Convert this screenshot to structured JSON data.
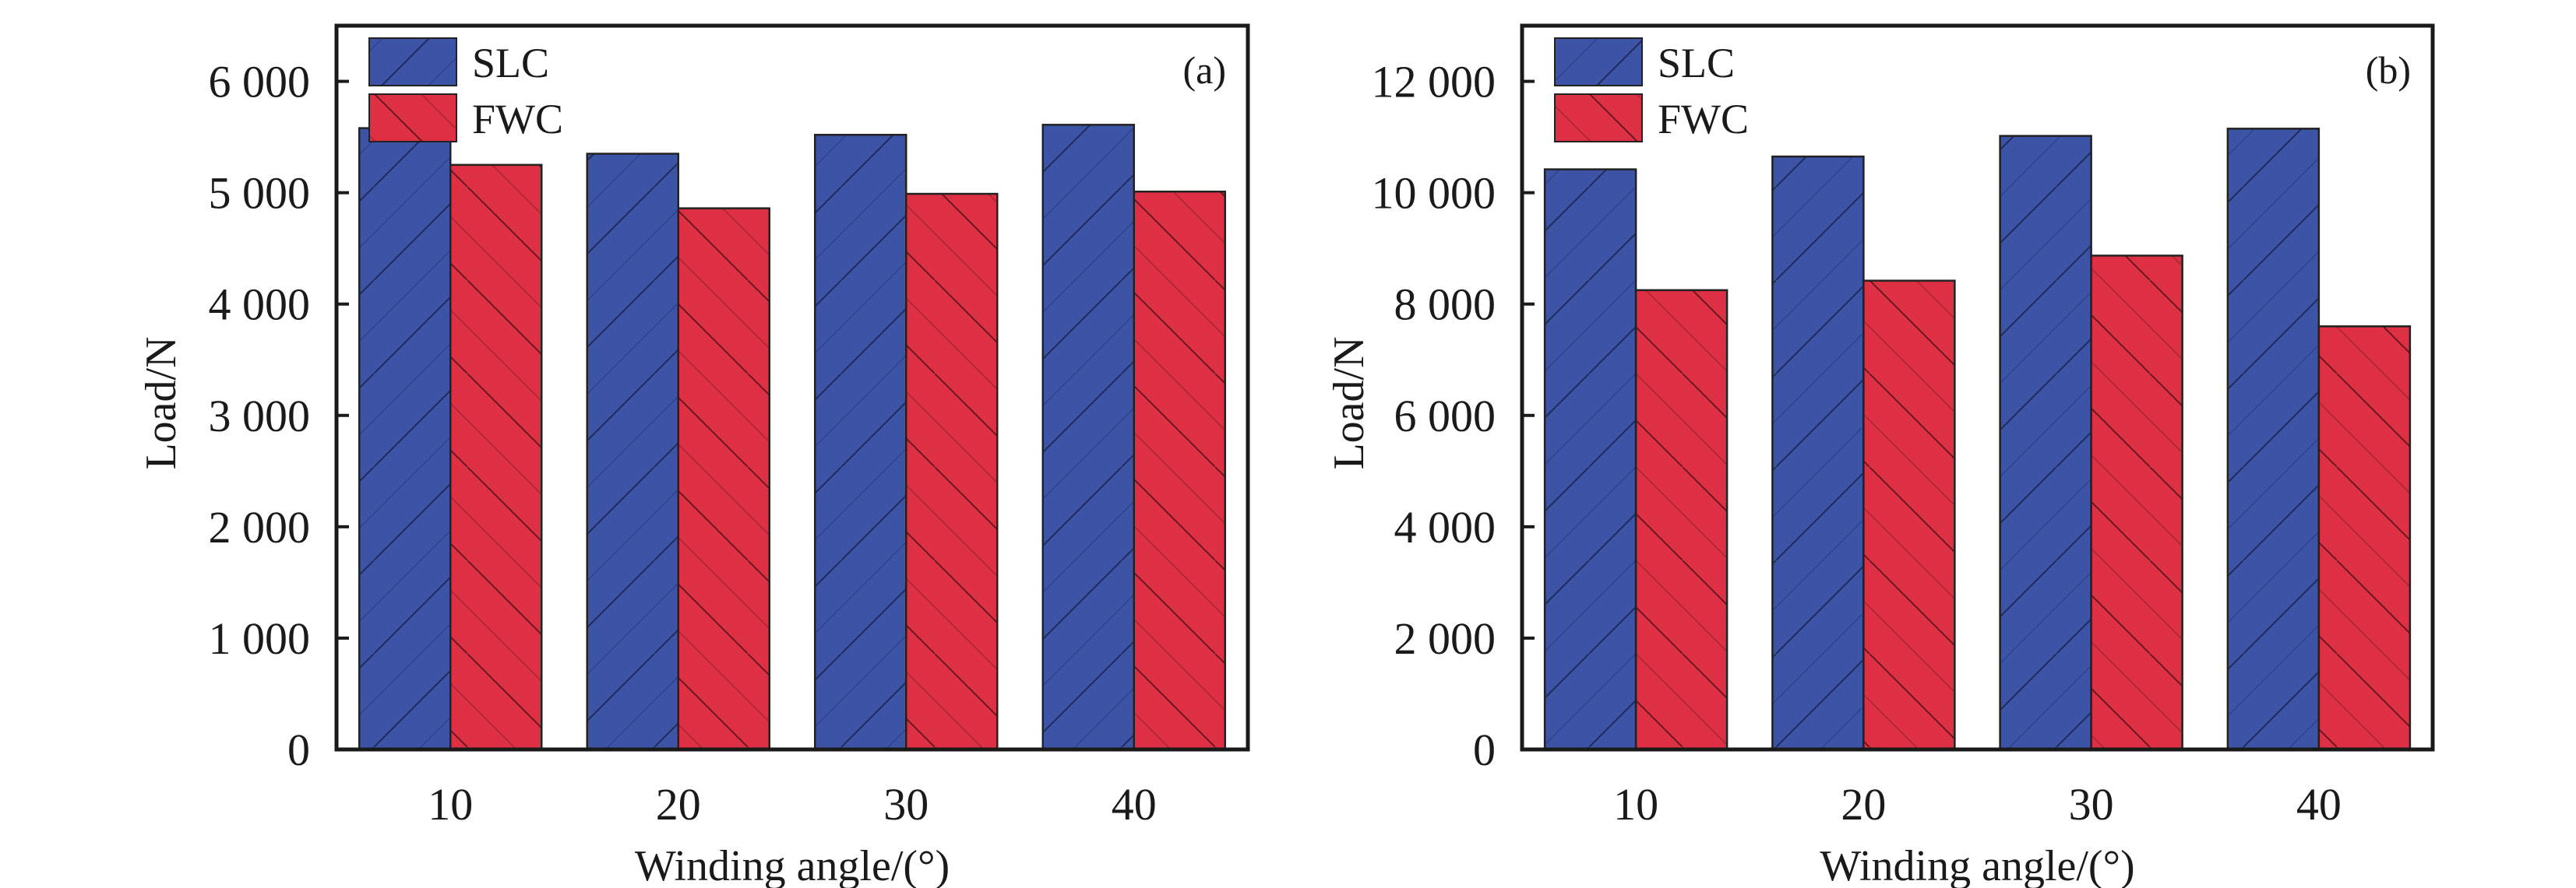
{
  "chart_data": [
    {
      "type": "bar",
      "panel_label": "(a)",
      "title": "",
      "xlabel": "Winding angle/(°)",
      "ylabel": "Load/N",
      "categories": [
        "10",
        "20",
        "30",
        "40"
      ],
      "ylim": [
        0,
        6500
      ],
      "yticks": [
        0,
        1000,
        2000,
        3000,
        4000,
        5000,
        6000
      ],
      "ytick_labels": [
        "0",
        "1 000",
        "2 000",
        "3 000",
        "4 000",
        "5 000",
        "6 000"
      ],
      "grid": false,
      "legend_position": "top-left",
      "series": [
        {
          "name": "SLC",
          "color": "#3d53a5",
          "hatch": "forward-diagonal",
          "values": [
            5580,
            5350,
            5520,
            5610
          ]
        },
        {
          "name": "FWC",
          "color": "#de3044",
          "hatch": "backward-diagonal",
          "values": [
            5250,
            4860,
            4990,
            5010
          ]
        }
      ]
    },
    {
      "type": "bar",
      "panel_label": "(b)",
      "title": "",
      "xlabel": "Winding angle/(°)",
      "ylabel": "Load/N",
      "categories": [
        "10",
        "20",
        "30",
        "40"
      ],
      "ylim": [
        0,
        13000
      ],
      "yticks": [
        0,
        2000,
        4000,
        6000,
        8000,
        10000,
        12000
      ],
      "ytick_labels": [
        "0",
        "2 000",
        "4 000",
        "6 000",
        "8 000",
        "10 000",
        "12 000"
      ],
      "grid": false,
      "legend_position": "top-left",
      "series": [
        {
          "name": "SLC",
          "color": "#3d53a5",
          "hatch": "forward-diagonal",
          "values": [
            10420,
            10650,
            11020,
            11150
          ]
        },
        {
          "name": "FWC",
          "color": "#de3044",
          "hatch": "backward-diagonal",
          "values": [
            8250,
            8420,
            8870,
            7600
          ]
        }
      ]
    }
  ]
}
